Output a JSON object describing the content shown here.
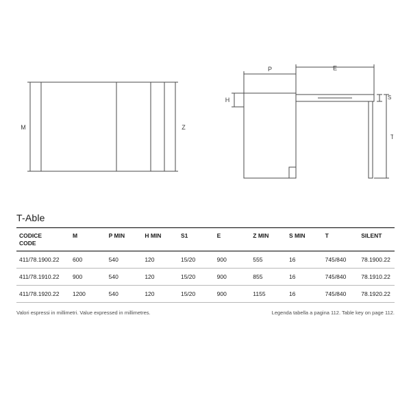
{
  "product_title": "T-Able",
  "diagram": {
    "stroke": "#4a4a4a",
    "stroke_width": 1,
    "fill": "#ffffff",
    "label_text_color": "#3a3a3a",
    "left": {
      "labels": {
        "M": "M",
        "Z": "Z"
      }
    },
    "right": {
      "labels": {
        "P": "P",
        "E": "E",
        "H": "H",
        "T": "T",
        "S": "S"
      }
    }
  },
  "table": {
    "headers": {
      "code": "CODICE\nCODE",
      "M": "M",
      "PMIN": "P MIN",
      "HMIN": "H MIN",
      "S1": "S1",
      "E": "E",
      "ZMIN": "Z MIN",
      "SMIN": "S MIN",
      "T": "T",
      "SILENT": "SILENT"
    },
    "rows": [
      {
        "code": "411/78.1900.22",
        "M": "600",
        "PMIN": "540",
        "HMIN": "120",
        "S1": "15/20",
        "E": "900",
        "ZMIN": "555",
        "SMIN": "16",
        "T": "745/840",
        "SILENT": "78.1900.22"
      },
      {
        "code": "411/78.1910.22",
        "M": "900",
        "PMIN": "540",
        "HMIN": "120",
        "S1": "15/20",
        "E": "900",
        "ZMIN": "855",
        "SMIN": "16",
        "T": "745/840",
        "SILENT": "78.1910.22"
      },
      {
        "code": "411/78.1920.22",
        "M": "1200",
        "PMIN": "540",
        "HMIN": "120",
        "S1": "15/20",
        "E": "900",
        "ZMIN": "1155",
        "SMIN": "16",
        "T": "745/840",
        "SILENT": "78.1920.22"
      }
    ]
  },
  "footer": {
    "left": "Valori espressi in millimetri.  Value expressed in millimetres.",
    "right": "Legenda tabella a pagina 112.  Table key on page 112."
  }
}
